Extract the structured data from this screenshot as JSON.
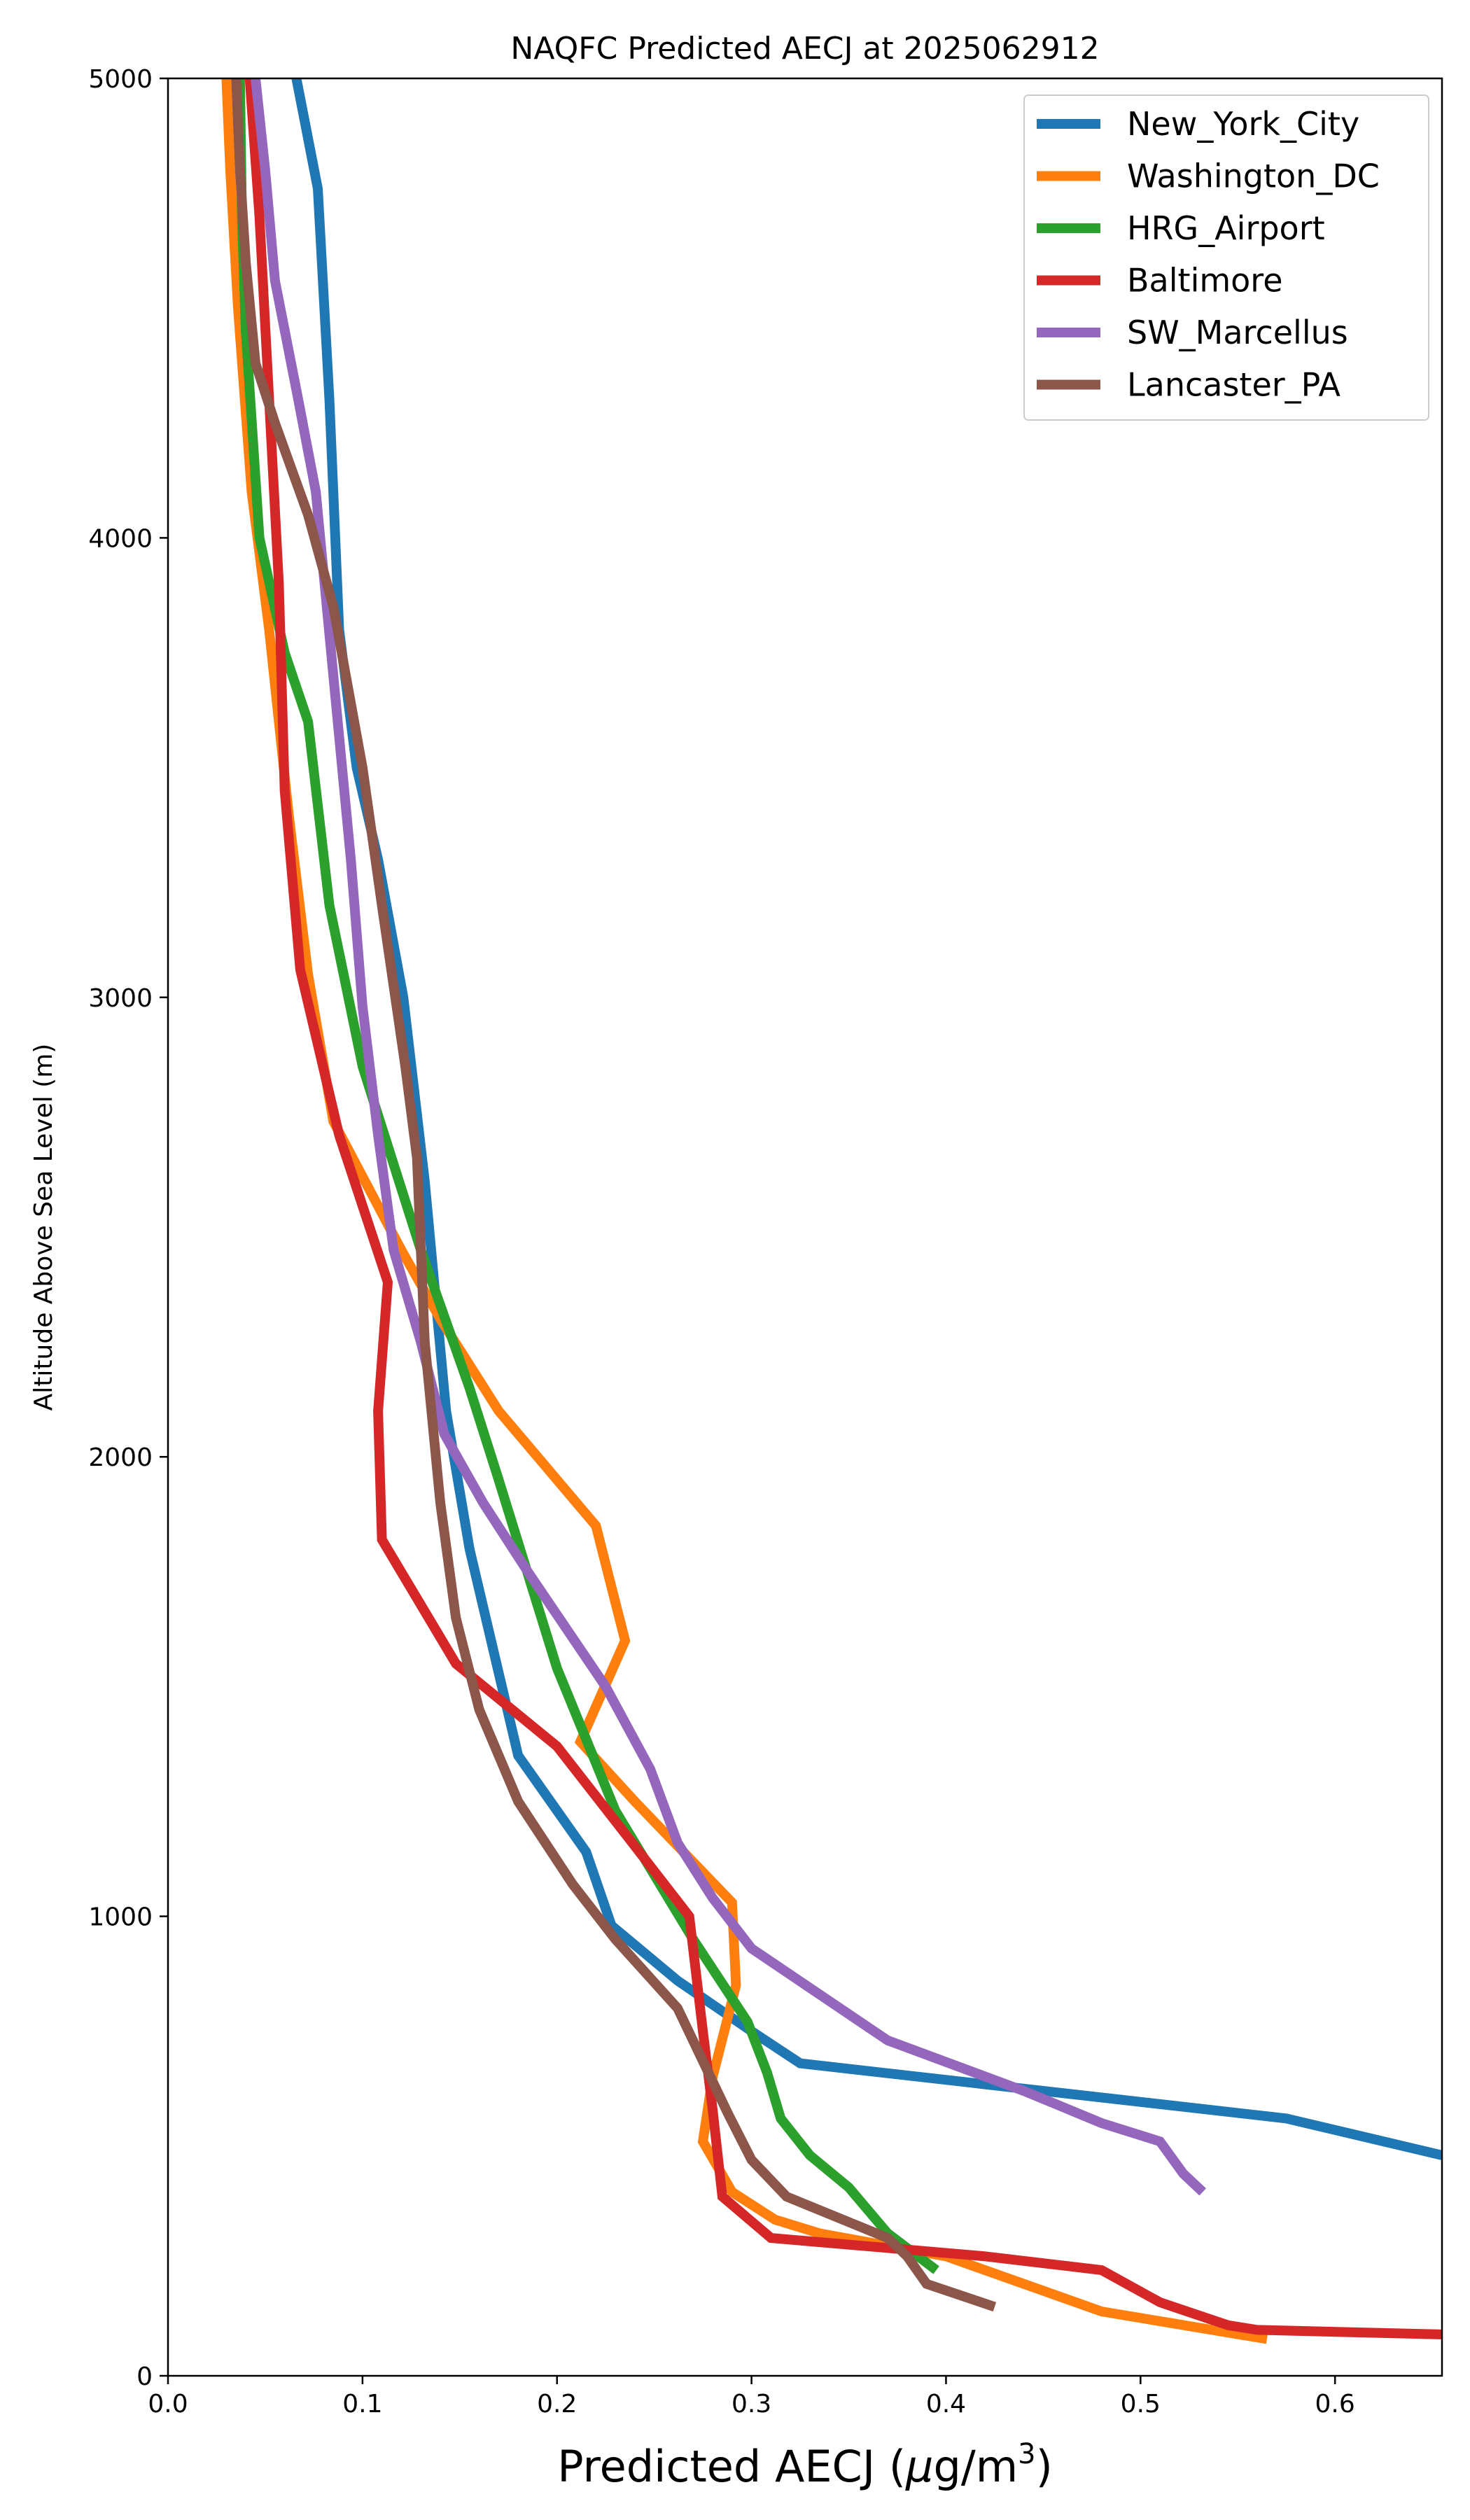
{
  "chart_data": {
    "type": "line",
    "title": "NAQFC Predicted AECJ at 2025062912",
    "xlabel_main": "Predicted AECJ (",
    "xlabel_mu": "μ",
    "xlabel_unit": "g/m",
    "xlabel_sup": "3",
    "xlabel_close": ")",
    "ylabel": "Altitude Above Sea Level (m)",
    "xlim": [
      0,
      0.655
    ],
    "ylim": [
      0,
      5000
    ],
    "xticks": [
      0.0,
      0.1,
      0.2,
      0.3,
      0.4,
      0.5,
      0.6
    ],
    "xtick_labels": [
      "0.0",
      "0.1",
      "0.2",
      "0.3",
      "0.4",
      "0.5",
      "0.6"
    ],
    "yticks": [
      0,
      1000,
      2000,
      3000,
      4000,
      5000
    ],
    "ytick_labels": [
      "0",
      "1000",
      "2000",
      "3000",
      "4000",
      "5000"
    ],
    "grid": false,
    "legend_position": "top-right",
    "series": [
      {
        "name": "New_York_City",
        "color": "#1f77b4",
        "x": [
          0.066,
          0.077,
          0.083,
          0.088,
          0.097,
          0.108,
          0.121,
          0.132,
          0.143,
          0.155,
          0.18,
          0.215,
          0.228,
          0.262,
          0.3,
          0.325,
          0.575,
          0.655
        ],
        "y": [
          5000,
          4760,
          4300,
          3800,
          3500,
          3300,
          3000,
          2600,
          2100,
          1800,
          1350,
          1140,
          980,
          860,
          750,
          680,
          560,
          480
        ]
      },
      {
        "name": "Washington_DC",
        "color": "#ff7f0e",
        "x": [
          0.03,
          0.032,
          0.036,
          0.043,
          0.052,
          0.062,
          0.072,
          0.085,
          0.12,
          0.14,
          0.155,
          0.17,
          0.22,
          0.235,
          0.212,
          0.24,
          0.29,
          0.292,
          0.28,
          0.275,
          0.29,
          0.312,
          0.335,
          0.4,
          0.48,
          0.565
        ],
        "y": [
          5000,
          4800,
          4500,
          4100,
          3800,
          3400,
          3050,
          2730,
          2450,
          2300,
          2200,
          2100,
          1850,
          1600,
          1380,
          1250,
          1030,
          850,
          650,
          510,
          400,
          340,
          310,
          260,
          140,
          80
        ]
      },
      {
        "name": "HRG_Airport",
        "color": "#2ca02c",
        "x": [
          0.037,
          0.038,
          0.04,
          0.047,
          0.06,
          0.072,
          0.083,
          0.1,
          0.13,
          0.155,
          0.17,
          0.2,
          0.23,
          0.27,
          0.298,
          0.308,
          0.315,
          0.33,
          0.35,
          0.37,
          0.395
        ],
        "y": [
          5000,
          4700,
          4450,
          4000,
          3750,
          3600,
          3200,
          2850,
          2450,
          2150,
          1950,
          1540,
          1230,
          950,
          770,
          660,
          560,
          480,
          410,
          310,
          230
        ]
      },
      {
        "name": "Baltimore",
        "color": "#d62728",
        "x": [
          0.042,
          0.047,
          0.052,
          0.057,
          0.06,
          0.068,
          0.088,
          0.113,
          0.108,
          0.11,
          0.148,
          0.2,
          0.235,
          0.268,
          0.275,
          0.28,
          0.285,
          0.31,
          0.42,
          0.48,
          0.51,
          0.545,
          0.56,
          0.655
        ],
        "y": [
          5000,
          4700,
          4300,
          3900,
          3450,
          3060,
          2700,
          2380,
          2100,
          1820,
          1550,
          1370,
          1180,
          1000,
          750,
          580,
          390,
          300,
          260,
          230,
          160,
          110,
          100,
          90
        ]
      },
      {
        "name": "SW_Marcellus",
        "color": "#9467bd",
        "x": [
          0.045,
          0.05,
          0.055,
          0.067,
          0.076,
          0.085,
          0.094,
          0.1,
          0.108,
          0.116,
          0.13,
          0.142,
          0.162,
          0.185,
          0.225,
          0.248,
          0.262,
          0.28,
          0.3,
          0.335,
          0.37,
          0.44,
          0.48,
          0.51,
          0.522,
          0.532
        ],
        "y": [
          5000,
          4800,
          4560,
          4300,
          4100,
          3700,
          3300,
          2980,
          2700,
          2450,
          2250,
          2050,
          1900,
          1750,
          1500,
          1320,
          1160,
          1040,
          930,
          830,
          730,
          620,
          550,
          510,
          440,
          400
        ]
      },
      {
        "name": "Lancaster_PA",
        "color": "#8c564b",
        "x": [
          0.035,
          0.037,
          0.04,
          0.045,
          0.055,
          0.072,
          0.085,
          0.1,
          0.11,
          0.122,
          0.128,
          0.132,
          0.14,
          0.148,
          0.16,
          0.18,
          0.208,
          0.23,
          0.262,
          0.288,
          0.3,
          0.318,
          0.37,
          0.38,
          0.39,
          0.425
        ],
        "y": [
          5000,
          4800,
          4600,
          4380,
          4250,
          4050,
          3850,
          3500,
          3200,
          2850,
          2650,
          2250,
          1900,
          1650,
          1450,
          1250,
          1070,
          950,
          800,
          570,
          470,
          390,
          300,
          260,
          200,
          150
        ]
      }
    ]
  }
}
